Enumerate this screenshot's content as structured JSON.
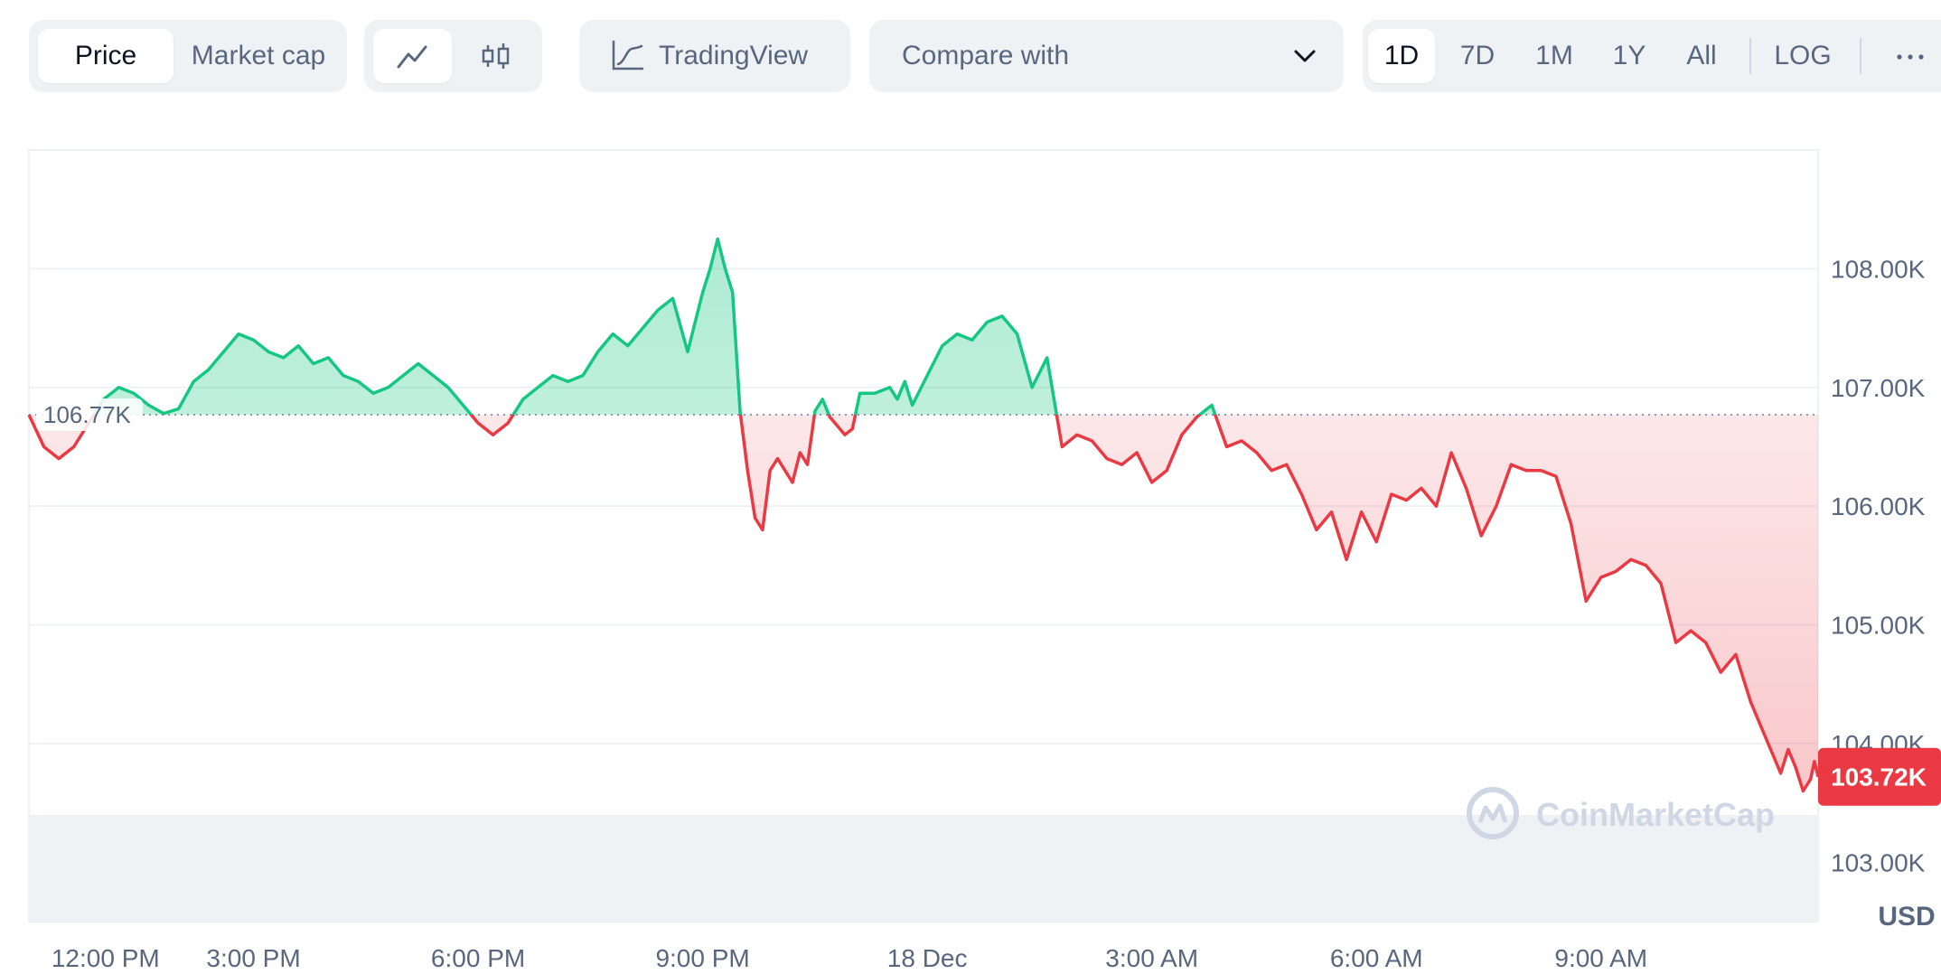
{
  "toolbar": {
    "metric_tabs": [
      {
        "label": "Price",
        "active": true
      },
      {
        "label": "Market cap",
        "active": false
      }
    ],
    "chart_style_buttons": [
      {
        "icon": "line-chart-icon",
        "active": true
      },
      {
        "icon": "candlestick-icon",
        "active": false
      }
    ],
    "tradingview": {
      "label": "TradingView",
      "icon": "tradingview-icon"
    },
    "compare": {
      "label": "Compare with",
      "icon": "chevron-down-icon"
    },
    "ranges": [
      {
        "label": "1D",
        "active": true
      },
      {
        "label": "7D",
        "active": false
      },
      {
        "label": "1M",
        "active": false
      },
      {
        "label": "1Y",
        "active": false
      },
      {
        "label": "All",
        "active": false
      }
    ],
    "log_label": "LOG",
    "more_icon": "more-horizontal-icon"
  },
  "chart_data": {
    "type": "area",
    "reference_value": 106.77,
    "reference_label": "106.77K",
    "current_value": 103.72,
    "current_label": "103.72K",
    "ylim": [
      102.5,
      109.0
    ],
    "y_ticks": [
      {
        "value": 108,
        "label": "108.00K"
      },
      {
        "value": 107,
        "label": "107.00K"
      },
      {
        "value": 106,
        "label": "106.00K"
      },
      {
        "value": 105,
        "label": "105.00K"
      },
      {
        "value": 104,
        "label": "104.00K"
      },
      {
        "value": 103,
        "label": "103.00K"
      }
    ],
    "x_ticks": [
      {
        "value": 0.3,
        "label": "12:00 PM"
      },
      {
        "value": 3.0,
        "label": "3:00 PM"
      },
      {
        "value": 6.0,
        "label": "6:00 PM"
      },
      {
        "value": 9.0,
        "label": "9:00 PM"
      },
      {
        "value": 12.0,
        "label": "18 Dec"
      },
      {
        "value": 15.0,
        "label": "3:00 AM"
      },
      {
        "value": 18.0,
        "label": "6:00 AM"
      },
      {
        "value": 21.0,
        "label": "9:00 AM"
      }
    ],
    "xlim": [
      0,
      23.9
    ],
    "currency_label": "USD",
    "watermark": "CoinMarketCap",
    "colors": {
      "up": "#16c784",
      "down": "#ea3943",
      "grid": "#eff2f5",
      "axis_text": "#58667e"
    },
    "price": [
      [
        0.0,
        106.77
      ],
      [
        0.2,
        106.5
      ],
      [
        0.4,
        106.4
      ],
      [
        0.6,
        106.5
      ],
      [
        0.8,
        106.7
      ],
      [
        1.0,
        106.9
      ],
      [
        1.2,
        107.0
      ],
      [
        1.4,
        106.95
      ],
      [
        1.6,
        106.85
      ],
      [
        1.8,
        106.78
      ],
      [
        2.0,
        106.82
      ],
      [
        2.2,
        107.05
      ],
      [
        2.4,
        107.15
      ],
      [
        2.6,
        107.3
      ],
      [
        2.8,
        107.45
      ],
      [
        3.0,
        107.4
      ],
      [
        3.2,
        107.3
      ],
      [
        3.4,
        107.25
      ],
      [
        3.6,
        107.35
      ],
      [
        3.8,
        107.2
      ],
      [
        4.0,
        107.25
      ],
      [
        4.2,
        107.1
      ],
      [
        4.4,
        107.05
      ],
      [
        4.6,
        106.95
      ],
      [
        4.8,
        107.0
      ],
      [
        5.0,
        107.1
      ],
      [
        5.2,
        107.2
      ],
      [
        5.4,
        107.1
      ],
      [
        5.6,
        107.0
      ],
      [
        5.8,
        106.85
      ],
      [
        6.0,
        106.7
      ],
      [
        6.2,
        106.6
      ],
      [
        6.4,
        106.7
      ],
      [
        6.6,
        106.9
      ],
      [
        6.8,
        107.0
      ],
      [
        7.0,
        107.1
      ],
      [
        7.2,
        107.05
      ],
      [
        7.4,
        107.1
      ],
      [
        7.6,
        107.3
      ],
      [
        7.8,
        107.45
      ],
      [
        8.0,
        107.35
      ],
      [
        8.2,
        107.5
      ],
      [
        8.4,
        107.65
      ],
      [
        8.6,
        107.75
      ],
      [
        8.8,
        107.3
      ],
      [
        9.0,
        107.8
      ],
      [
        9.1,
        108.0
      ],
      [
        9.2,
        108.25
      ],
      [
        9.3,
        108.0
      ],
      [
        9.4,
        107.8
      ],
      [
        9.5,
        106.8
      ],
      [
        9.6,
        106.3
      ],
      [
        9.7,
        105.9
      ],
      [
        9.8,
        105.8
      ],
      [
        9.9,
        106.3
      ],
      [
        10.0,
        106.4
      ],
      [
        10.1,
        106.3
      ],
      [
        10.2,
        106.2
      ],
      [
        10.3,
        106.45
      ],
      [
        10.4,
        106.35
      ],
      [
        10.5,
        106.8
      ],
      [
        10.6,
        106.9
      ],
      [
        10.7,
        106.75
      ],
      [
        10.9,
        106.6
      ],
      [
        11.0,
        106.65
      ],
      [
        11.1,
        106.95
      ],
      [
        11.3,
        106.95
      ],
      [
        11.5,
        107.0
      ],
      [
        11.6,
        106.9
      ],
      [
        11.7,
        107.05
      ],
      [
        11.8,
        106.85
      ],
      [
        12.0,
        107.1
      ],
      [
        12.2,
        107.35
      ],
      [
        12.4,
        107.45
      ],
      [
        12.6,
        107.4
      ],
      [
        12.8,
        107.55
      ],
      [
        13.0,
        107.6
      ],
      [
        13.2,
        107.45
      ],
      [
        13.4,
        107.0
      ],
      [
        13.6,
        107.25
      ],
      [
        13.8,
        106.5
      ],
      [
        14.0,
        106.6
      ],
      [
        14.2,
        106.55
      ],
      [
        14.4,
        106.4
      ],
      [
        14.6,
        106.35
      ],
      [
        14.8,
        106.45
      ],
      [
        15.0,
        106.2
      ],
      [
        15.2,
        106.3
      ],
      [
        15.4,
        106.6
      ],
      [
        15.6,
        106.75
      ],
      [
        15.8,
        106.85
      ],
      [
        16.0,
        106.5
      ],
      [
        16.2,
        106.55
      ],
      [
        16.4,
        106.45
      ],
      [
        16.6,
        106.3
      ],
      [
        16.8,
        106.35
      ],
      [
        17.0,
        106.1
      ],
      [
        17.2,
        105.8
      ],
      [
        17.4,
        105.95
      ],
      [
        17.6,
        105.55
      ],
      [
        17.8,
        105.95
      ],
      [
        18.0,
        105.7
      ],
      [
        18.2,
        106.1
      ],
      [
        18.4,
        106.05
      ],
      [
        18.6,
        106.15
      ],
      [
        18.8,
        106.0
      ],
      [
        19.0,
        106.45
      ],
      [
        19.2,
        106.15
      ],
      [
        19.4,
        105.75
      ],
      [
        19.6,
        106.0
      ],
      [
        19.8,
        106.35
      ],
      [
        20.0,
        106.3
      ],
      [
        20.2,
        106.3
      ],
      [
        20.4,
        106.25
      ],
      [
        20.6,
        105.85
      ],
      [
        20.8,
        105.2
      ],
      [
        21.0,
        105.4
      ],
      [
        21.2,
        105.45
      ],
      [
        21.4,
        105.55
      ],
      [
        21.6,
        105.5
      ],
      [
        21.8,
        105.35
      ],
      [
        22.0,
        104.85
      ],
      [
        22.2,
        104.95
      ],
      [
        22.4,
        104.85
      ],
      [
        22.6,
        104.6
      ],
      [
        22.8,
        104.75
      ],
      [
        23.0,
        104.35
      ],
      [
        23.2,
        104.05
      ],
      [
        23.4,
        103.75
      ],
      [
        23.5,
        103.95
      ],
      [
        23.6,
        103.8
      ],
      [
        23.7,
        103.6
      ],
      [
        23.8,
        103.7
      ],
      [
        23.85,
        103.85
      ],
      [
        23.9,
        103.72
      ]
    ]
  }
}
